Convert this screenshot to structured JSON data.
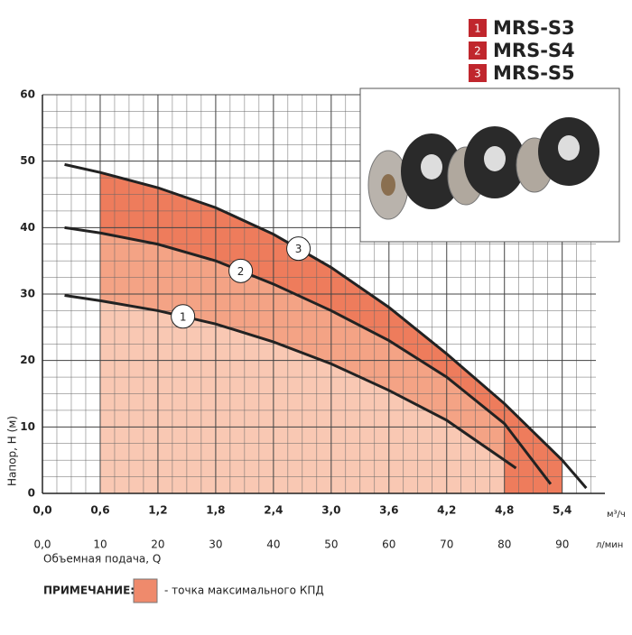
{
  "chart_data": {
    "type": "line",
    "ylabel": "Напор, Н (м)",
    "xlabel": "Объемная подача, Q",
    "xunit": "м³/ч",
    "x2unit": "л/мин",
    "xlim": [
      0,
      5.75
    ],
    "x2lim": [
      0,
      95.83
    ],
    "ylim": [
      0,
      60
    ],
    "xticks": [
      {
        "value": 0,
        "label": "0,0"
      },
      {
        "value": 0.6,
        "label": "0,6"
      },
      {
        "value": 1.2,
        "label": "1,2"
      },
      {
        "value": 1.8,
        "label": "1,8"
      },
      {
        "value": 2.4,
        "label": "2,4"
      },
      {
        "value": 3.0,
        "label": "3,0"
      },
      {
        "value": 3.6,
        "label": "3,6"
      },
      {
        "value": 4.2,
        "label": "4,2"
      },
      {
        "value": 4.8,
        "label": "4,8"
      },
      {
        "value": 5.4,
        "label": "5,4"
      }
    ],
    "x2ticks": [
      {
        "value": 0,
        "label": "0,0"
      },
      10,
      20,
      30,
      40,
      50,
      60,
      70,
      80,
      90
    ],
    "yticks": [
      0,
      10,
      20,
      30,
      40,
      50,
      60
    ],
    "grid": true,
    "series": [
      {
        "name": "MRS-S3",
        "marker": "1",
        "color": "#222222",
        "fill_color": "#f9c8b3",
        "efficiency_range": [
          0.6,
          4.8
        ],
        "x": [
          0.23,
          0.6,
          1.2,
          1.8,
          2.4,
          3.0,
          3.6,
          4.2,
          4.8,
          4.92
        ],
        "values": [
          29.8,
          29,
          27.5,
          25.5,
          22.8,
          19.5,
          15.5,
          11,
          5,
          3.8
        ]
      },
      {
        "name": "MRS-S4",
        "marker": "2",
        "color": "#222222",
        "fill_color": "#f4a385",
        "efficiency_range": [
          0.6,
          4.8
        ],
        "x": [
          0.23,
          0.6,
          1.2,
          1.8,
          2.4,
          3.0,
          3.6,
          4.2,
          4.8,
          5.28
        ],
        "values": [
          40,
          39.2,
          37.5,
          35,
          31.5,
          27.5,
          23,
          17.5,
          10.5,
          1.4
        ]
      },
      {
        "name": "MRS-S5",
        "marker": "3",
        "color": "#222222",
        "fill_color": "#ee7c5c",
        "efficiency_range": [
          0.6,
          5.4
        ],
        "x": [
          0.23,
          0.6,
          1.2,
          1.8,
          2.4,
          3.0,
          3.6,
          4.2,
          4.8,
          5.4,
          5.65
        ],
        "values": [
          49.5,
          48.3,
          46,
          43,
          39,
          34,
          28,
          21,
          13.5,
          5,
          0.8
        ]
      }
    ],
    "legend_color": "#c0262d",
    "note": {
      "label": "ПРИМЕЧАНИЕ:",
      "text": "- точка максимального КПД",
      "color": "#ef8a6c"
    }
  }
}
